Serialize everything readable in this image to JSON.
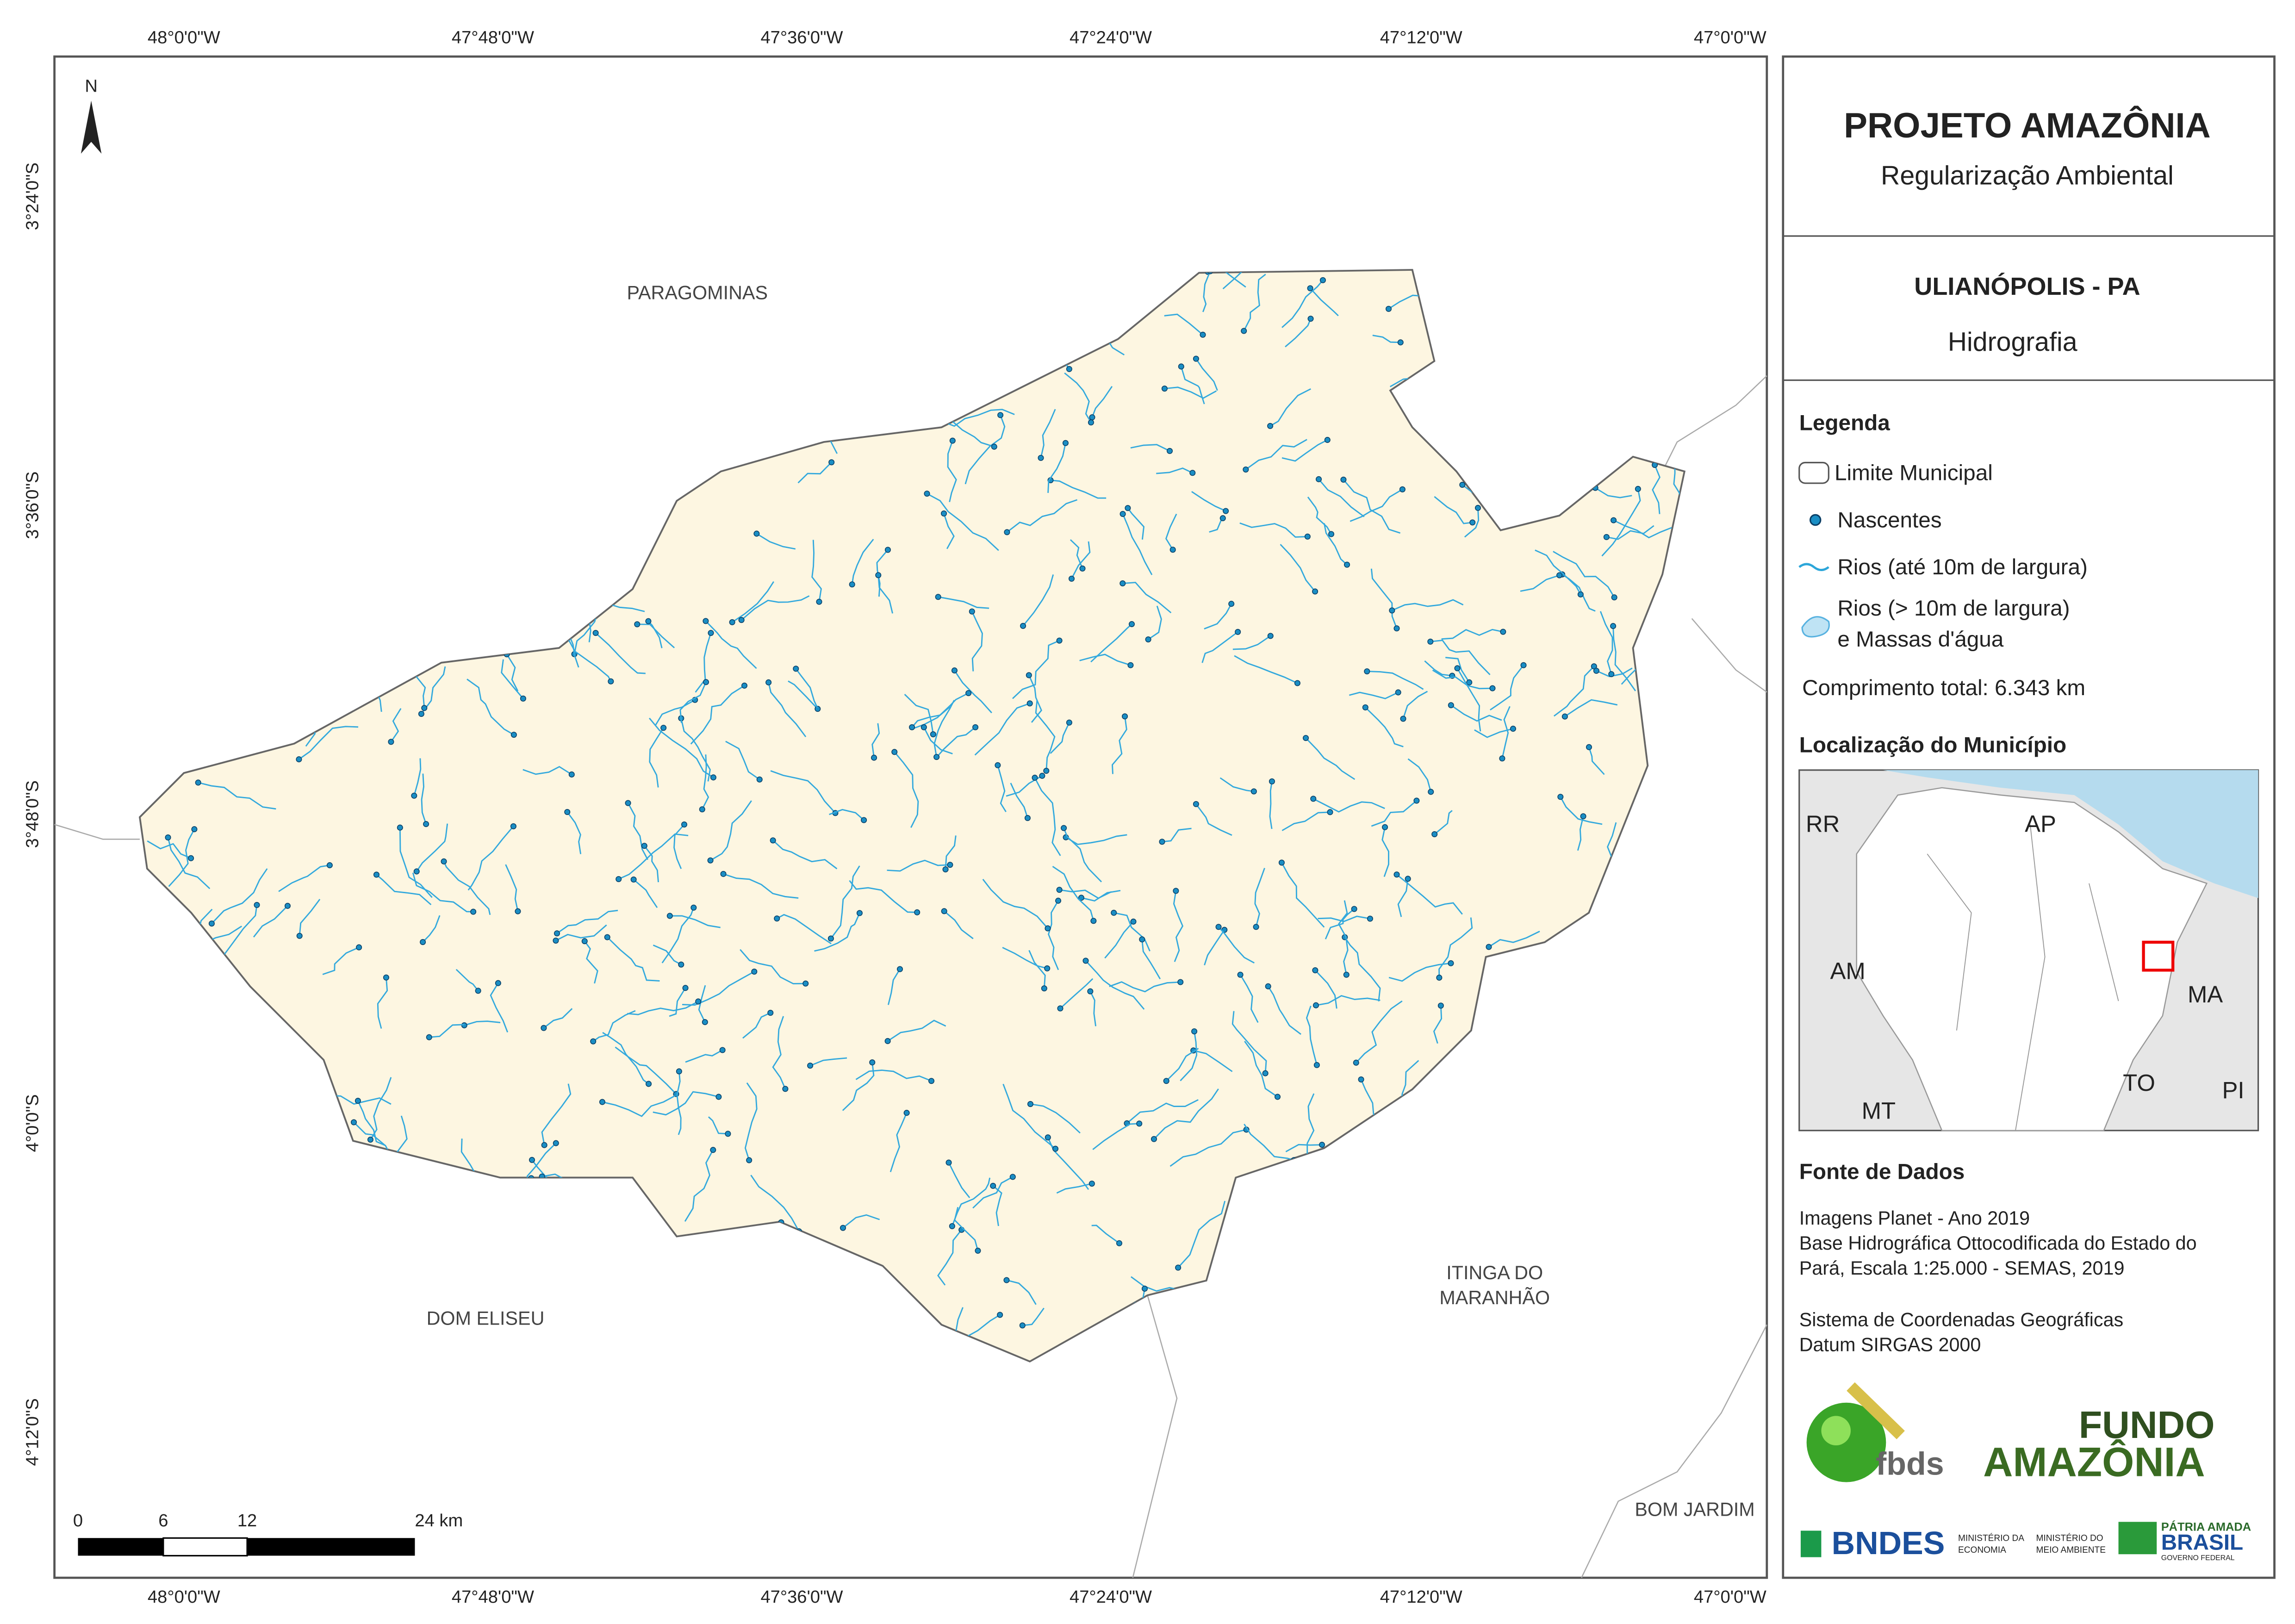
{
  "map": {
    "top_longitude_labels": [
      "48°0'0\"W",
      "47°48'0\"W",
      "47°36'0\"W",
      "47°24'0\"W",
      "47°12'0\"W",
      "47°0'0\"W"
    ],
    "bottom_longitude_labels": [
      "48°0'0\"W",
      "47°48'0\"W",
      "47°36'0\"W",
      "47°24'0\"W",
      "47°12'0\"W",
      "47°0'0\"W"
    ],
    "latitude_labels": [
      "3°24'0\"S",
      "3°36'0\"S",
      "3°48'0\"S",
      "4°0'0\"S",
      "4°12'0\"S"
    ],
    "north_label": "N",
    "places": [
      {
        "lines": [
          "PARAGOMINAS"
        ]
      },
      {
        "lines": [
          "DOM ELISEU"
        ]
      },
      {
        "lines": [
          "ITINGA DO",
          "MARANHÃO"
        ]
      },
      {
        "lines": [
          "BOM JARDIM"
        ]
      }
    ],
    "scale_bar": {
      "labels": [
        "0",
        "6",
        "12",
        "24 km"
      ]
    }
  },
  "panel": {
    "title": "PROJETO AMAZÔNIA",
    "subtitle": "Regularização Ambiental",
    "municipality": "ULIANÓPOLIS - PA",
    "theme": "Hidrografia",
    "legend": {
      "title": "Legenda",
      "items": [
        {
          "lines": [
            "Limite Municipal"
          ]
        },
        {
          "lines": [
            "Nascentes"
          ]
        },
        {
          "lines": [
            "Rios (até 10m de largura)"
          ]
        },
        {
          "lines": [
            "Rios (> 10m de largura)",
            "e Massas d'água"
          ]
        }
      ],
      "total": "Comprimento total: 6.343 km"
    },
    "location": {
      "title": "Localização do Município",
      "states": [
        "RR",
        "AP",
        "AM",
        "MA",
        "MT",
        "TO",
        "PI"
      ]
    },
    "sources": {
      "title": "Fonte de Dados",
      "lines": [
        "Imagens Planet - Ano 2019",
        "Base Hidrográfica Ottocodificada do Estado do",
        "Pará, Escala 1:25.000 - SEMAS, 2019",
        "Sistema de Coordenadas Geográficas",
        "Datum SIRGAS 2000"
      ]
    },
    "logos": {
      "fbds": "fbds",
      "fundo": "FUNDO",
      "amazonia": "AMAZÔNIA",
      "bndes": "BNDES",
      "min_economia": [
        "MINISTÉRIO DA",
        "ECONOMIA"
      ],
      "min_ambiente": [
        "MINISTÉRIO DO",
        "MEIO AMBIENTE"
      ],
      "patria": "PÁTRIA AMADA",
      "brasil": "BRASIL",
      "governo": "GOVERNO FEDERAL"
    }
  }
}
